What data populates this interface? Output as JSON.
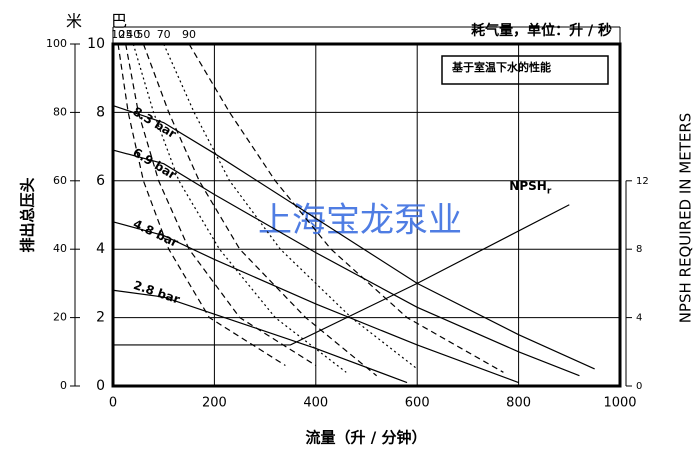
{
  "chart_data": {
    "type": "line",
    "title": "耗气量，单位：升 / 秒",
    "note": "基于室温下水的性能",
    "watermark": "上海宝龙泵业",
    "x_label": "流量（升 / 分钟）",
    "y_label": "排出总压头",
    "y_unit": "米 巴",
    "y2_label": "NPSH REQUIRED IN METERS",
    "xlim": [
      0,
      1000
    ],
    "xticks": [
      0,
      200,
      400,
      600,
      800,
      1000
    ],
    "ylim": [
      0,
      10
    ],
    "yticks": [
      0,
      2,
      4,
      6,
      8,
      10
    ],
    "y_outer_lim": [
      0,
      100
    ],
    "y_outer_ticks": [
      0,
      20,
      40,
      60,
      80,
      100
    ],
    "y2lim": [
      0,
      20
    ],
    "y2ticks": [
      0,
      4,
      8,
      12
    ],
    "grid": true,
    "series": [
      {
        "name": "8.3 bar",
        "group": "pressure",
        "color": "#000000",
        "line_style": "solid",
        "x": [
          0,
          100,
          200,
          400,
          600,
          800,
          950
        ],
        "values": [
          8.2,
          7.7,
          6.8,
          4.9,
          3.0,
          1.5,
          0.5
        ]
      },
      {
        "name": "6.9 bar",
        "group": "pressure",
        "color": "#000000",
        "line_style": "solid",
        "x": [
          0,
          100,
          200,
          400,
          600,
          800,
          920
        ],
        "values": [
          6.9,
          6.5,
          5.6,
          3.9,
          2.3,
          1.0,
          0.3
        ]
      },
      {
        "name": "4.8 bar",
        "group": "pressure",
        "color": "#000000",
        "line_style": "solid",
        "x": [
          0,
          100,
          200,
          400,
          600,
          800
        ],
        "values": [
          4.8,
          4.4,
          3.7,
          2.4,
          1.2,
          0.1
        ]
      },
      {
        "name": "2.8 bar",
        "group": "pressure",
        "color": "#000000",
        "line_style": "solid",
        "x": [
          0,
          100,
          200,
          400,
          580
        ],
        "values": [
          2.8,
          2.6,
          2.1,
          1.1,
          0.1
        ]
      },
      {
        "name": "10",
        "group": "air",
        "color": "#000000",
        "line_style": "dashed",
        "x": [
          10,
          30,
          60,
          110,
          190,
          340
        ],
        "values": [
          10,
          8,
          6,
          4,
          2,
          0.6
        ]
      },
      {
        "name": "25",
        "group": "air",
        "color": "#000000",
        "line_style": "dashed",
        "x": [
          25,
          50,
          90,
          150,
          250,
          400
        ],
        "values": [
          10,
          8,
          6,
          4,
          2,
          0.6
        ]
      },
      {
        "name": "40",
        "group": "air",
        "color": "#000000",
        "line_style": "dotted",
        "x": [
          40,
          80,
          130,
          210,
          320,
          460
        ],
        "values": [
          10,
          8,
          6,
          4,
          2,
          0.4
        ]
      },
      {
        "name": "50",
        "group": "air",
        "color": "#000000",
        "line_style": "dashed",
        "x": [
          60,
          110,
          170,
          250,
          380,
          520
        ],
        "values": [
          10,
          8,
          6,
          4,
          2,
          0.3
        ]
      },
      {
        "name": "70",
        "group": "air",
        "color": "#000000",
        "line_style": "dotted",
        "x": [
          100,
          160,
          230,
          330,
          470,
          600
        ],
        "values": [
          10,
          8,
          6,
          4,
          2,
          0.5
        ]
      },
      {
        "name": "90",
        "group": "air",
        "color": "#000000",
        "line_style": "dashed",
        "x": [
          150,
          230,
          320,
          430,
          580,
          770
        ],
        "values": [
          10,
          8,
          6,
          4,
          2,
          0.4
        ]
      },
      {
        "name": "NPSH",
        "subscript": "r",
        "group": "npsh",
        "axis": "y2",
        "color": "#000000",
        "line_style": "solid",
        "x": [
          0,
          350,
          600,
          900
        ],
        "values": [
          2.4,
          2.4,
          6,
          10.6
        ]
      }
    ]
  }
}
